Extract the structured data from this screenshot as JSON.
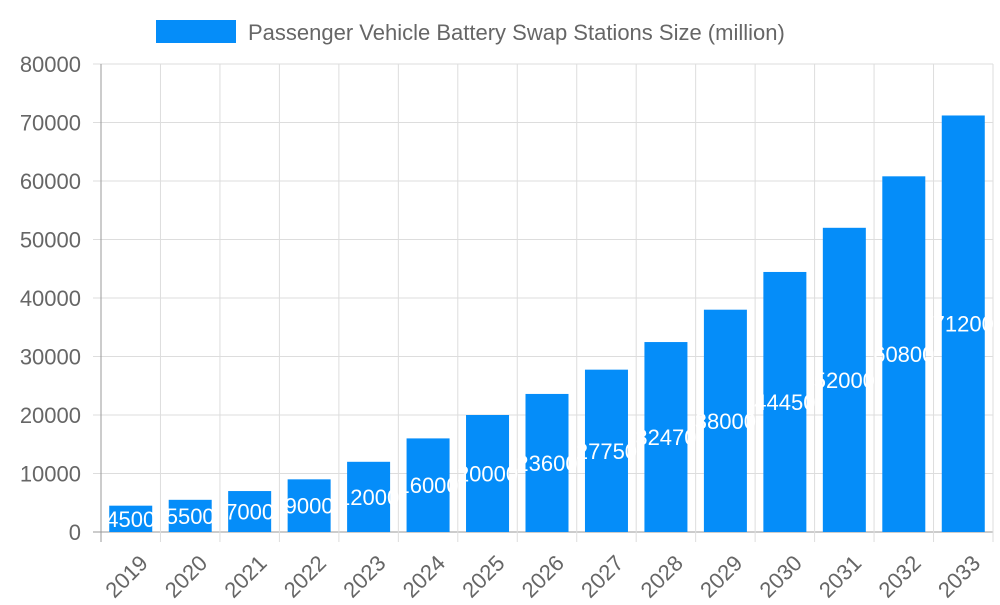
{
  "chart_data": {
    "type": "bar",
    "categories": [
      "2019",
      "2020",
      "2021",
      "2022",
      "2023",
      "2024",
      "2025",
      "2026",
      "2027",
      "2028",
      "2029",
      "2030",
      "2031",
      "2032",
      "2033"
    ],
    "series": [
      {
        "name": "Passenger Vehicle Battery Swap Stations Size (million)",
        "values": [
          4500,
          5500,
          7000,
          9000,
          12000,
          16000,
          20000,
          23600,
          27750,
          32470,
          38000,
          44450,
          52000,
          60800,
          71200
        ],
        "color": "#058DF9"
      }
    ],
    "ylim": [
      0,
      80000
    ],
    "yticks": [
      "0",
      "10000",
      "20000",
      "30000",
      "40000",
      "50000",
      "60000",
      "70000",
      "80000"
    ],
    "grid": true,
    "legend_position": "top",
    "data_labels": true
  }
}
